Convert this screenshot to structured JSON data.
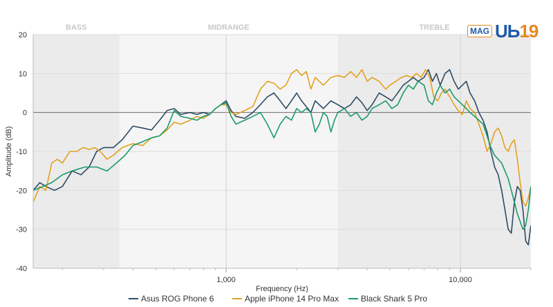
{
  "chart_data": {
    "type": "line",
    "xscale": "log",
    "xlim": [
      150,
      20000
    ],
    "ylim": [
      -40,
      20
    ],
    "xlabel": "Frequency (Hz)",
    "ylabel": "Amplitude (dB)",
    "yticks": [
      "20",
      "10",
      "0",
      "-10",
      "-20",
      "-30",
      "-40"
    ],
    "xticks": [
      {
        "value": 1000,
        "label": "1,000"
      },
      {
        "value": 10000,
        "label": "10,000"
      }
    ],
    "bands": [
      {
        "label": "BASS",
        "from": 150,
        "to": 350,
        "shade": "#ebebeb"
      },
      {
        "label": "MIDRANGE",
        "from": 350,
        "to": 3000,
        "shade": "#f5f5f5"
      },
      {
        "label": "TREBLE",
        "from": 3000,
        "to": 20000,
        "shade": "#ebebeb"
      }
    ],
    "series": [
      {
        "name": "Asus ROG Phone 6",
        "color": "#2d4a63",
        "points": [
          [
            150,
            -20
          ],
          [
            160,
            -18
          ],
          [
            170,
            -19
          ],
          [
            185,
            -20
          ],
          [
            200,
            -19
          ],
          [
            220,
            -15
          ],
          [
            240,
            -16
          ],
          [
            260,
            -14
          ],
          [
            280,
            -10
          ],
          [
            300,
            -9
          ],
          [
            330,
            -9
          ],
          [
            360,
            -7
          ],
          [
            400,
            -3.5
          ],
          [
            440,
            -4
          ],
          [
            480,
            -4.5
          ],
          [
            520,
            -2
          ],
          [
            560,
            0.5
          ],
          [
            600,
            1
          ],
          [
            640,
            -0.5
          ],
          [
            700,
            0
          ],
          [
            750,
            -0.5
          ],
          [
            800,
            0
          ],
          [
            850,
            -0.5
          ],
          [
            900,
            1
          ],
          [
            950,
            2
          ],
          [
            1000,
            3
          ],
          [
            1050,
            0.5
          ],
          [
            1100,
            -1
          ],
          [
            1200,
            -1.5
          ],
          [
            1300,
            0
          ],
          [
            1400,
            2
          ],
          [
            1500,
            4
          ],
          [
            1600,
            5
          ],
          [
            1700,
            3
          ],
          [
            1800,
            1
          ],
          [
            1900,
            3
          ],
          [
            2000,
            5
          ],
          [
            2100,
            3
          ],
          [
            2200,
            1.5
          ],
          [
            2300,
            0
          ],
          [
            2400,
            3
          ],
          [
            2600,
            1
          ],
          [
            2800,
            3
          ],
          [
            3000,
            2
          ],
          [
            3200,
            1
          ],
          [
            3400,
            2
          ],
          [
            3600,
            4
          ],
          [
            3800,
            2.5
          ],
          [
            4000,
            0.5
          ],
          [
            4200,
            2
          ],
          [
            4500,
            5
          ],
          [
            4800,
            4
          ],
          [
            5100,
            3
          ],
          [
            5400,
            5
          ],
          [
            5700,
            7
          ],
          [
            6000,
            8
          ],
          [
            6300,
            9
          ],
          [
            6600,
            8
          ],
          [
            7000,
            9
          ],
          [
            7300,
            11
          ],
          [
            7600,
            8
          ],
          [
            7900,
            10
          ],
          [
            8200,
            7
          ],
          [
            8600,
            10
          ],
          [
            9000,
            11
          ],
          [
            9400,
            8
          ],
          [
            9800,
            6
          ],
          [
            10200,
            7
          ],
          [
            10600,
            8
          ],
          [
            11000,
            5
          ],
          [
            11500,
            3
          ],
          [
            12000,
            0
          ],
          [
            12500,
            -2
          ],
          [
            13000,
            -5
          ],
          [
            13500,
            -10
          ],
          [
            14000,
            -14
          ],
          [
            14500,
            -16
          ],
          [
            15000,
            -20
          ],
          [
            15500,
            -25
          ],
          [
            16000,
            -30
          ],
          [
            16500,
            -31
          ],
          [
            17000,
            -23
          ],
          [
            17500,
            -19
          ],
          [
            18000,
            -20
          ],
          [
            18500,
            -25
          ],
          [
            19000,
            -33
          ],
          [
            19500,
            -34
          ],
          [
            20000,
            -29
          ]
        ]
      },
      {
        "name": "Apple iPhone 14 Pro Max",
        "color": "#e3a01f",
        "points": [
          [
            150,
            -23
          ],
          [
            160,
            -19
          ],
          [
            170,
            -20
          ],
          [
            180,
            -13
          ],
          [
            190,
            -12
          ],
          [
            200,
            -13
          ],
          [
            215,
            -10
          ],
          [
            230,
            -10
          ],
          [
            245,
            -9
          ],
          [
            260,
            -9.5
          ],
          [
            275,
            -9
          ],
          [
            290,
            -10
          ],
          [
            310,
            -12
          ],
          [
            330,
            -11
          ],
          [
            360,
            -9
          ],
          [
            400,
            -8
          ],
          [
            440,
            -8.5
          ],
          [
            480,
            -6.5
          ],
          [
            520,
            -6
          ],
          [
            560,
            -4.5
          ],
          [
            600,
            -2.5
          ],
          [
            640,
            -3
          ],
          [
            700,
            -2
          ],
          [
            750,
            -1
          ],
          [
            800,
            -1.5
          ],
          [
            850,
            -0.5
          ],
          [
            900,
            1
          ],
          [
            950,
            2
          ],
          [
            1000,
            2
          ],
          [
            1050,
            0
          ],
          [
            1100,
            -0.5
          ],
          [
            1200,
            0.5
          ],
          [
            1300,
            1.5
          ],
          [
            1400,
            6
          ],
          [
            1500,
            8
          ],
          [
            1600,
            7.5
          ],
          [
            1700,
            6
          ],
          [
            1800,
            7
          ],
          [
            1900,
            10
          ],
          [
            2000,
            11
          ],
          [
            2100,
            9.5
          ],
          [
            2200,
            10.5
          ],
          [
            2300,
            6
          ],
          [
            2400,
            9
          ],
          [
            2600,
            7
          ],
          [
            2800,
            9
          ],
          [
            3000,
            9.5
          ],
          [
            3200,
            9
          ],
          [
            3400,
            10.5
          ],
          [
            3600,
            9
          ],
          [
            3800,
            11
          ],
          [
            4000,
            8
          ],
          [
            4200,
            9
          ],
          [
            4500,
            8
          ],
          [
            4800,
            6
          ],
          [
            5000,
            7
          ],
          [
            5300,
            8
          ],
          [
            5600,
            9
          ],
          [
            5900,
            9.5
          ],
          [
            6200,
            9
          ],
          [
            6500,
            10
          ],
          [
            6800,
            9
          ],
          [
            7100,
            11
          ],
          [
            7400,
            9
          ],
          [
            7700,
            4
          ],
          [
            8000,
            3
          ],
          [
            8300,
            5
          ],
          [
            8600,
            6
          ],
          [
            9000,
            4
          ],
          [
            9400,
            2
          ],
          [
            9800,
            0.5
          ],
          [
            10200,
            -0.5
          ],
          [
            10600,
            3
          ],
          [
            11000,
            1
          ],
          [
            11500,
            0
          ],
          [
            12000,
            -3
          ],
          [
            12500,
            -6
          ],
          [
            13000,
            -10
          ],
          [
            13500,
            -8
          ],
          [
            14000,
            -5
          ],
          [
            14500,
            -4
          ],
          [
            15000,
            -6
          ],
          [
            15500,
            -9
          ],
          [
            16000,
            -10
          ],
          [
            16500,
            -8
          ],
          [
            17000,
            -7
          ],
          [
            17500,
            -12
          ],
          [
            18000,
            -18
          ],
          [
            18500,
            -23
          ],
          [
            19000,
            -24
          ],
          [
            19500,
            -22
          ],
          [
            20000,
            -19
          ]
        ]
      },
      {
        "name": "Black Shark 5 Pro",
        "color": "#199a6c",
        "points": [
          [
            150,
            -20
          ],
          [
            165,
            -19
          ],
          [
            180,
            -18
          ],
          [
            200,
            -16
          ],
          [
            220,
            -15
          ],
          [
            250,
            -14
          ],
          [
            280,
            -14
          ],
          [
            310,
            -15
          ],
          [
            340,
            -13
          ],
          [
            370,
            -11
          ],
          [
            400,
            -8.5
          ],
          [
            440,
            -7.5
          ],
          [
            480,
            -6.5
          ],
          [
            520,
            -6
          ],
          [
            560,
            -4
          ],
          [
            600,
            0.5
          ],
          [
            640,
            -1
          ],
          [
            700,
            -1.5
          ],
          [
            750,
            -2
          ],
          [
            800,
            -1
          ],
          [
            850,
            -0.5
          ],
          [
            900,
            1
          ],
          [
            950,
            2
          ],
          [
            1000,
            2.5
          ],
          [
            1050,
            -1
          ],
          [
            1100,
            -3
          ],
          [
            1200,
            -2
          ],
          [
            1300,
            -1
          ],
          [
            1400,
            0
          ],
          [
            1500,
            -3
          ],
          [
            1600,
            -6.5
          ],
          [
            1700,
            -3
          ],
          [
            1800,
            -1
          ],
          [
            1900,
            -2
          ],
          [
            2000,
            1
          ],
          [
            2100,
            0
          ],
          [
            2200,
            1
          ],
          [
            2300,
            0
          ],
          [
            2400,
            -5
          ],
          [
            2500,
            -3
          ],
          [
            2600,
            0
          ],
          [
            2700,
            -1
          ],
          [
            2800,
            -5
          ],
          [
            2900,
            -2
          ],
          [
            3000,
            0
          ],
          [
            3200,
            1
          ],
          [
            3400,
            -1
          ],
          [
            3600,
            0
          ],
          [
            3800,
            -2
          ],
          [
            4000,
            -1
          ],
          [
            4200,
            1
          ],
          [
            4500,
            2
          ],
          [
            4800,
            3
          ],
          [
            5100,
            1
          ],
          [
            5400,
            2
          ],
          [
            5700,
            5
          ],
          [
            6000,
            7
          ],
          [
            6300,
            6
          ],
          [
            6600,
            8
          ],
          [
            7000,
            7
          ],
          [
            7300,
            3
          ],
          [
            7600,
            2
          ],
          [
            7900,
            5
          ],
          [
            8200,
            7
          ],
          [
            8600,
            5
          ],
          [
            9000,
            6
          ],
          [
            9400,
            4
          ],
          [
            9800,
            3
          ],
          [
            10200,
            2
          ],
          [
            10600,
            1
          ],
          [
            11000,
            0
          ],
          [
            11500,
            -1
          ],
          [
            12000,
            -2
          ],
          [
            12500,
            -3
          ],
          [
            13000,
            -6
          ],
          [
            13500,
            -9
          ],
          [
            14000,
            -11
          ],
          [
            14500,
            -12
          ],
          [
            15000,
            -13
          ],
          [
            15500,
            -15
          ],
          [
            16000,
            -17
          ],
          [
            16500,
            -20
          ],
          [
            17000,
            -23
          ],
          [
            17500,
            -26
          ],
          [
            18000,
            -28
          ],
          [
            18500,
            -30
          ],
          [
            19000,
            -29
          ],
          [
            19500,
            -25
          ],
          [
            20000,
            -19
          ]
        ]
      }
    ]
  },
  "logo": {
    "badge": "MAG",
    "text_a": "UЬ",
    "text_b": "19"
  }
}
